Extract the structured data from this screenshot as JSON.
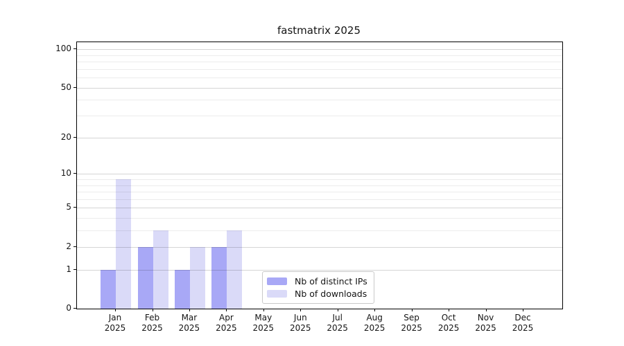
{
  "title": "fastmatrix 2025",
  "chart_data": {
    "type": "bar",
    "title": "fastmatrix 2025",
    "y_scale": "log1p (symlog-like: position ~ log10(1+value))",
    "ylim": [
      0,
      110
    ],
    "grid": true,
    "legend_position": "inside lower-center-left",
    "year": "2025",
    "categories": [
      {
        "month": "Jan",
        "year": "2025"
      },
      {
        "month": "Feb",
        "year": "2025"
      },
      {
        "month": "Mar",
        "year": "2025"
      },
      {
        "month": "Apr",
        "year": "2025"
      },
      {
        "month": "May",
        "year": "2025"
      },
      {
        "month": "Jun",
        "year": "2025"
      },
      {
        "month": "Jul",
        "year": "2025"
      },
      {
        "month": "Aug",
        "year": "2025"
      },
      {
        "month": "Sep",
        "year": "2025"
      },
      {
        "month": "Oct",
        "year": "2025"
      },
      {
        "month": "Nov",
        "year": "2025"
      },
      {
        "month": "Dec",
        "year": "2025"
      }
    ],
    "series": [
      {
        "name": "Nb of distinct IPs",
        "color": "#a8a8f6",
        "values": [
          1,
          2,
          1,
          2,
          0,
          0,
          0,
          0,
          0,
          0,
          0,
          0
        ]
      },
      {
        "name": "Nb of downloads",
        "color": "#dadaf8",
        "values": [
          9,
          3,
          2,
          3,
          0,
          0,
          0,
          0,
          0,
          0,
          0,
          0
        ]
      }
    ],
    "y_major_ticks": [
      0,
      1,
      2,
      5,
      10,
      20,
      50,
      100
    ],
    "y_minor_gridlines": [
      3,
      4,
      6,
      7,
      8,
      9,
      30,
      40,
      60,
      70,
      80,
      90
    ]
  },
  "colors": {
    "bar_distinct_ips": "#a8a8f6",
    "bar_downloads": "#dadaf8",
    "grid_major": "#d5d5d5",
    "grid_minor": "#ececec",
    "spine": "#000000",
    "text": "#141414",
    "legend_border": "#c9c9c9",
    "background": "#ffffff"
  }
}
